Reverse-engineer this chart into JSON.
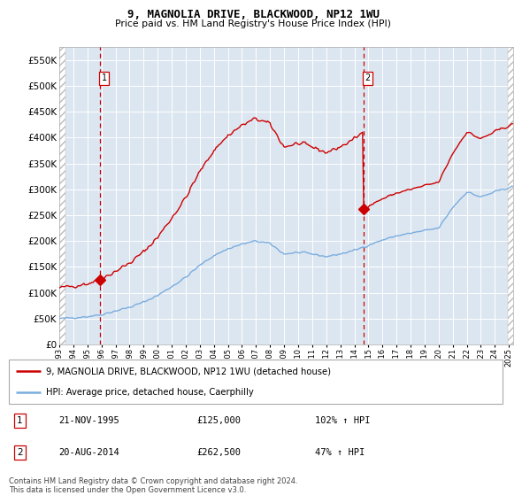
{
  "title1": "9, MAGNOLIA DRIVE, BLACKWOOD, NP12 1WU",
  "title2": "Price paid vs. HM Land Registry's House Price Index (HPI)",
  "legend_line1": "9, MAGNOLIA DRIVE, BLACKWOOD, NP12 1WU (detached house)",
  "legend_line2": "HPI: Average price, detached house, Caerphilly",
  "sale1_label": "1",
  "sale1_date": "21-NOV-1995",
  "sale1_price": "£125,000",
  "sale1_hpi": "102% ↑ HPI",
  "sale2_label": "2",
  "sale2_date": "20-AUG-2014",
  "sale2_price": "£262,500",
  "sale2_hpi": "47% ↑ HPI",
  "footnote": "Contains HM Land Registry data © Crown copyright and database right 2024.\nThis data is licensed under the Open Government Licence v3.0.",
  "ylim": [
    0,
    575000
  ],
  "yticks": [
    0,
    50000,
    100000,
    150000,
    200000,
    250000,
    300000,
    350000,
    400000,
    450000,
    500000,
    550000
  ],
  "bg_color": "#dce6f1",
  "grid_color": "#ffffff",
  "hpi_color": "#7aadde",
  "price_color": "#cc0000",
  "vline_color": "#cc0000",
  "sale1_year": 1995.89,
  "sale1_price_val": 125000,
  "sale2_year": 2014.63,
  "sale2_price_val": 262500,
  "xmin": 1993.0,
  "xmax": 2025.3,
  "hpi_anchors_t": [
    1993.0,
    1994.0,
    1995.0,
    1996.0,
    1997.0,
    1998.0,
    1999.0,
    2000.0,
    2001.0,
    2002.0,
    2003.0,
    2004.0,
    2005.0,
    2006.0,
    2007.0,
    2008.0,
    2009.0,
    2010.0,
    2011.0,
    2012.0,
    2013.0,
    2014.0,
    2015.0,
    2016.0,
    2017.0,
    2018.0,
    2019.0,
    2020.0,
    2021.0,
    2022.0,
    2023.0,
    2024.0,
    2025.2
  ],
  "hpi_anchors_p": [
    50000,
    52000,
    54000,
    58000,
    65000,
    72000,
    82000,
    95000,
    112000,
    130000,
    153000,
    172000,
    185000,
    194000,
    200000,
    195000,
    175000,
    178000,
    175000,
    170000,
    175000,
    182000,
    192000,
    202000,
    210000,
    215000,
    220000,
    225000,
    265000,
    295000,
    285000,
    295000,
    305000
  ]
}
